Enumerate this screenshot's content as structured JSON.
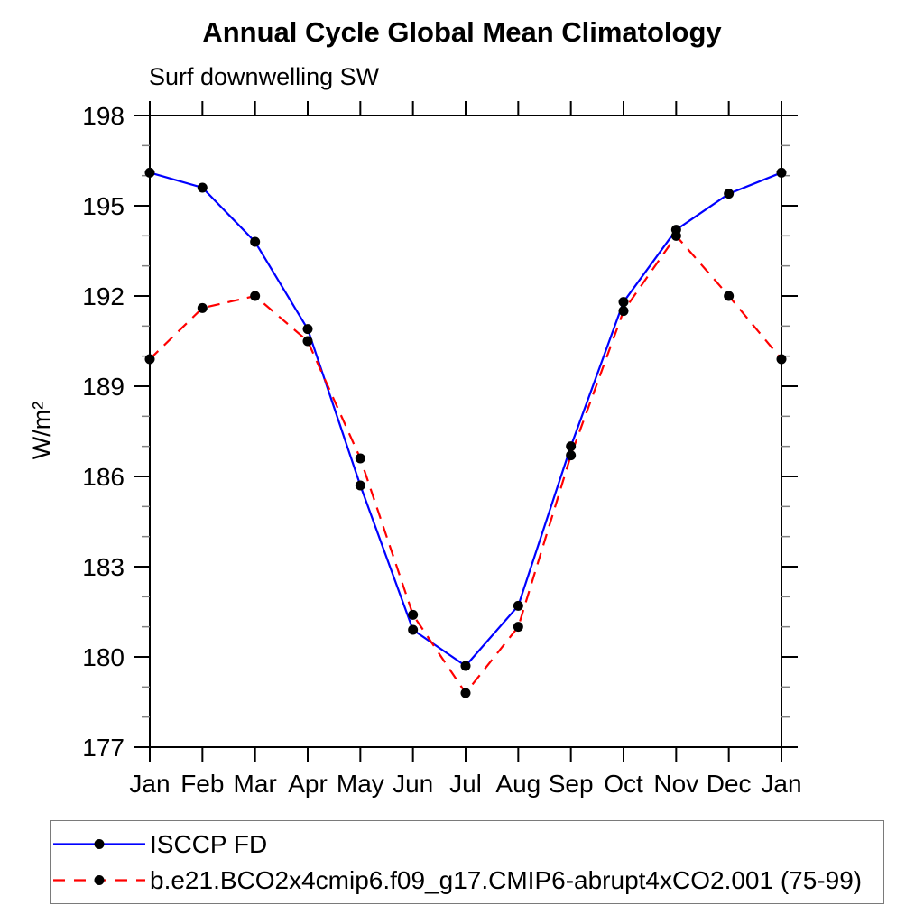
{
  "title": "Annual Cycle Global Mean Climatology",
  "subtitle": "Surf downwelling SW",
  "chart_data": {
    "type": "line",
    "x_categories": [
      "Jan",
      "Feb",
      "Mar",
      "Apr",
      "May",
      "Jun",
      "Jul",
      "Aug",
      "Sep",
      "Oct",
      "Nov",
      "Dec",
      "Jan"
    ],
    "xlabel": "",
    "ylabel": "W/m²",
    "ylim": [
      177,
      198
    ],
    "y_major_ticks": [
      177,
      180,
      183,
      186,
      189,
      192,
      195,
      198
    ],
    "y_major_step": 3,
    "y_minor_step": 1,
    "grid": false,
    "legend_position": "bottom",
    "frame_color": "#000000",
    "marker_color": "#000000",
    "series": [
      {
        "name": "ISCCP FD",
        "color": "#0000ff",
        "line_style": "solid",
        "marker": "filled-circle",
        "values": [
          196.1,
          195.6,
          193.8,
          190.9,
          185.7,
          180.9,
          179.7,
          181.7,
          187.0,
          191.8,
          194.2,
          195.4,
          196.1
        ]
      },
      {
        "name": "b.e21.BCO2x4cmip6.f09_g17.CMIP6-abrupt4xCO2.001 (75-99)",
        "color": "#ff0000",
        "line_style": "dashed",
        "marker": "filled-circle",
        "values": [
          189.9,
          191.6,
          192.0,
          190.5,
          186.6,
          181.4,
          178.8,
          181.0,
          186.7,
          191.5,
          194.0,
          192.0,
          189.9
        ]
      }
    ]
  }
}
